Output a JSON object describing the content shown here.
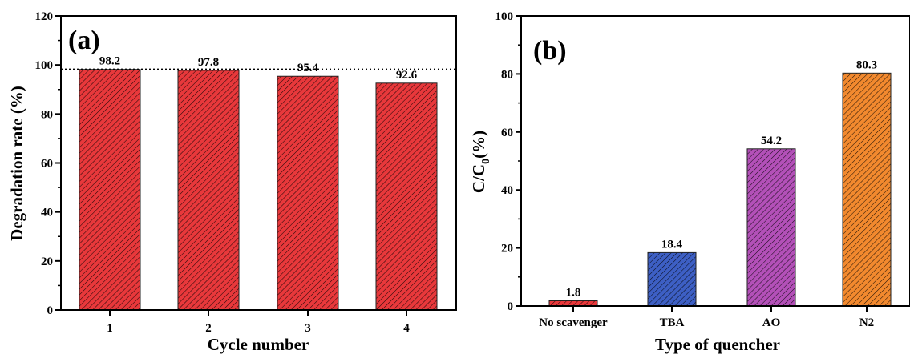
{
  "chart_data": [
    {
      "type": "bar",
      "panel_label": "(a)",
      "title": "",
      "xlabel": "Cycle number",
      "ylabel": "Degradation rate (%)",
      "categories": [
        "1",
        "2",
        "3",
        "4"
      ],
      "values": [
        98.2,
        97.8,
        95.4,
        92.6
      ],
      "value_labels": [
        "98.2",
        "97.8",
        "95.4",
        "92.6"
      ],
      "ylim": [
        0,
        120
      ],
      "yticks": [
        "0",
        "20",
        "40",
        "60",
        "80",
        "100",
        "120"
      ],
      "reference_line": 98.2,
      "bar_colors": [
        "#e8383b",
        "#e8383b",
        "#e8383b",
        "#e8383b"
      ],
      "grid": false
    },
    {
      "type": "bar",
      "panel_label": "(b)",
      "title": "",
      "xlabel": "Type of quencher",
      "ylabel_main": "C/C",
      "ylabel_sub": "0",
      "ylabel_tail": "(%)",
      "categories": [
        "No scavenger",
        "TBA",
        "AO",
        "N2"
      ],
      "values": [
        1.8,
        18.4,
        54.2,
        80.3
      ],
      "value_labels": [
        "1.8",
        "18.4",
        "54.2",
        "80.3"
      ],
      "ylim": [
        0,
        100
      ],
      "yticks": [
        "0",
        "20",
        "40",
        "60",
        "80",
        "100"
      ],
      "bar_colors": [
        "#e8383b",
        "#3d5fc4",
        "#b350b8",
        "#f2892e"
      ],
      "grid": false
    }
  ]
}
